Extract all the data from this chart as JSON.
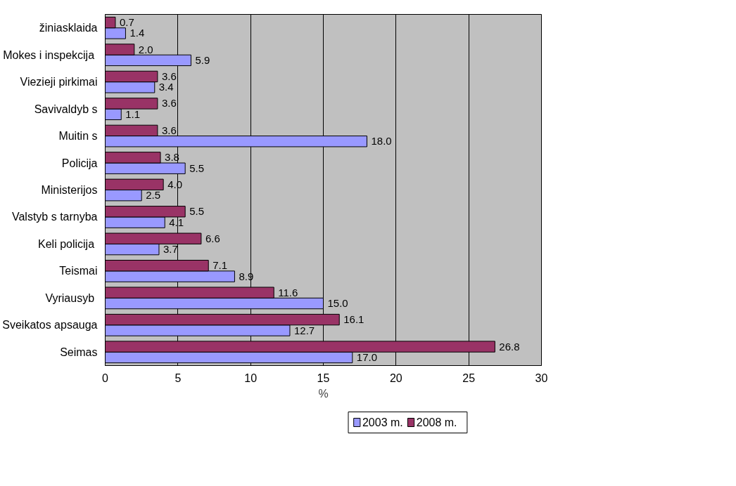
{
  "chart_data": {
    "type": "bar",
    "orientation": "horizontal",
    "xlabel": "%",
    "categories": [
      "žiniasklaida",
      "Mokes i  inspekcija",
      "Viezieji pirkimai",
      "Savivaldyb s",
      "Muitin s",
      "Policija",
      "Ministerijos",
      "Valstyb s tarnyba",
      "Keli  policija",
      "Teismai",
      "Vyriausyb ",
      "Sveikatos apsauga",
      "Seimas"
    ],
    "series": [
      {
        "name": "2003 m.",
        "color": "#9999ff",
        "values": [
          1.4,
          5.9,
          3.4,
          1.1,
          18,
          5.5,
          2.5,
          4.1,
          3.7,
          8.9,
          15,
          12.7,
          17
        ],
        "value_labels": [
          "1.4",
          "5.9",
          "3.4",
          "1.1",
          "18.0",
          "5.5",
          "2.5",
          "4.1",
          "3.7",
          "8.9",
          "15.0",
          "12.7",
          "17.0"
        ]
      },
      {
        "name": "2008 m.",
        "color": "#993366",
        "values": [
          0.7,
          2,
          3.6,
          3.6,
          3.6,
          3.8,
          4,
          5.5,
          6.6,
          7.1,
          11.6,
          16.1,
          26.8
        ],
        "value_labels": [
          "0.7",
          "2.0",
          "3.6",
          "3.6",
          "3.6",
          "3.8",
          "4.0",
          "5.5",
          "6.6",
          "7.1",
          "11.6",
          "16.1",
          "26.8"
        ]
      }
    ],
    "xlim": [
      0,
      30
    ],
    "xticks": [
      0,
      5,
      10,
      15,
      20,
      25,
      30
    ],
    "grid": "x",
    "legend": "bottom"
  }
}
